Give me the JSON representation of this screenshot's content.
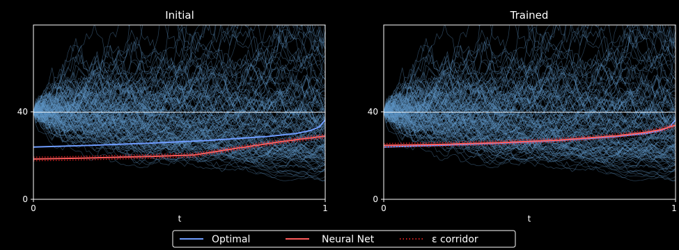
{
  "chart_data": [
    {
      "type": "line",
      "title": "Initial",
      "xlabel": "",
      "ylabel": "",
      "xlim": [
        0,
        1
      ],
      "ylim": [
        0,
        80
      ],
      "xticks": [
        "0",
        "1"
      ],
      "yticks": [
        "0",
        "40"
      ],
      "reference_line": 40,
      "paths": {
        "count": 140,
        "start": 40,
        "description": "simulated stochastic paths"
      },
      "series": [
        {
          "name": "Optimal",
          "x": [
            0,
            0.2,
            0.4,
            0.6,
            0.8,
            0.9,
            0.95,
            0.98,
            1.0
          ],
          "y": [
            24.0,
            24.8,
            25.8,
            27.0,
            28.8,
            30.2,
            31.6,
            33.2,
            36.5
          ]
        },
        {
          "name": "Neural Net",
          "x": [
            0,
            0.2,
            0.4,
            0.55,
            0.7,
            0.85,
            1.0
          ],
          "y": [
            18.5,
            19.0,
            19.7,
            20.3,
            23.5,
            26.5,
            29.0
          ]
        }
      ]
    },
    {
      "type": "line",
      "title": "Trained",
      "xlabel": "",
      "ylabel": "",
      "xlim": [
        0,
        1
      ],
      "ylim": [
        0,
        80
      ],
      "xticks": [
        "0",
        "1"
      ],
      "yticks": [
        "0",
        "40"
      ],
      "reference_line": 40,
      "paths": {
        "count": 140,
        "start": 40,
        "description": "simulated stochastic paths"
      },
      "series": [
        {
          "name": "Optimal",
          "x": [
            0,
            0.2,
            0.4,
            0.6,
            0.8,
            0.9,
            0.95,
            0.98,
            1.0
          ],
          "y": [
            24.0,
            24.8,
            25.8,
            27.0,
            28.8,
            30.2,
            31.6,
            33.2,
            36.5
          ]
        },
        {
          "name": "Neural Net",
          "x": [
            0,
            0.2,
            0.4,
            0.6,
            0.8,
            0.9,
            0.95,
            1.0
          ],
          "y": [
            24.8,
            25.2,
            26.0,
            27.2,
            29.2,
            30.8,
            32.0,
            34.0
          ]
        }
      ]
    }
  ],
  "shared": {
    "xlabel": "t",
    "legend": [
      {
        "label": "Optimal",
        "style": "solid",
        "color": "#6f9dff"
      },
      {
        "label": "Neural Net",
        "style": "solid",
        "color": "#ff5a5a"
      },
      {
        "label": "ε corridor",
        "style": "dotted",
        "color": "#d11f1f"
      }
    ],
    "legend_placement": "bottom-center"
  },
  "colors": {
    "background": "#000000",
    "paths": "#5f97c8",
    "optimal": "#6f9dff",
    "neural_net": "#ff5a5a",
    "corridor": "#d11f1f",
    "reference": "#ffffff",
    "axes": "#ffffff"
  }
}
